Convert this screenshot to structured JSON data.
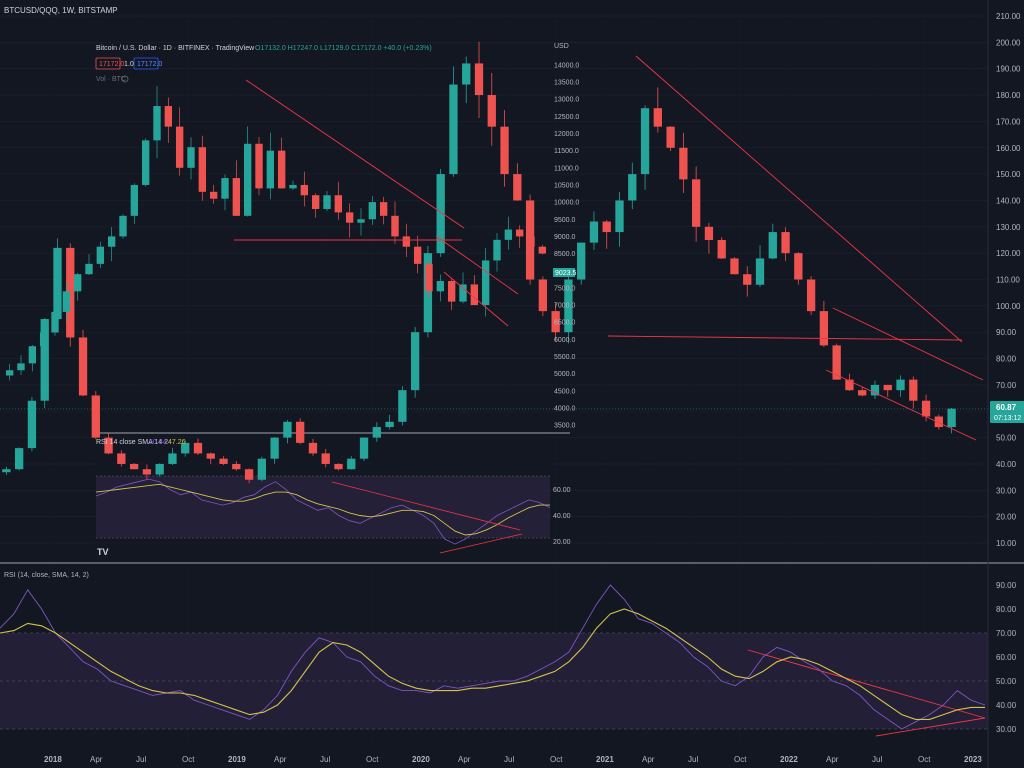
{
  "header": {
    "symbol": "BTCUSD/QQQ, 1W, BITSTAMP"
  },
  "inset": {
    "title": "Bitcoin / U.S. Dollar · 1D · BITFINEX · TradingView",
    "ohlc": "O17132.0 H17247.0 L17129.0 C17172.0 +40.0 (+0.23%)",
    "bid": "17172.0",
    "size": "1.0",
    "ask": "17172.0",
    "vol_label": "Vol · BTC",
    "rsi_label": "RSI 14 close SMA 14 2",
    "rsi_v1": "50.34",
    "rsi_v2": "47.26",
    "price_tag": "9023.5",
    "currency": "USD",
    "logo": "TV",
    "colors": {
      "up": "#26a69a",
      "down": "#ef5350"
    }
  },
  "price_badge": {
    "value": "60.87",
    "countdown": "07:13:12"
  },
  "rsi_header": "RSI (14, close, SMA, 14, 2)",
  "chart_data": [
    {
      "type": "candlestick",
      "title": "",
      "yaxis_ticks": [
        "210.00",
        "200.00",
        "190.00",
        "180.00",
        "170.00",
        "160.00",
        "150.00",
        "140.00",
        "130.00",
        "120.00",
        "110.00",
        "100.00",
        "90.00",
        "80.00",
        "70.00",
        "60.00",
        "50.00",
        "40.00",
        "30.00",
        "20.00",
        "10.00"
      ],
      "xaxis_ticks": [
        "2018",
        "Apr",
        "Jul",
        "Oct",
        "2019",
        "Apr",
        "Jul",
        "Oct",
        "2020",
        "Apr",
        "Jul",
        "Oct",
        "2021",
        "Apr",
        "Jul",
        "Oct",
        "2022",
        "Apr",
        "Jul",
        "Oct",
        "2023"
      ],
      "ylim": [
        5,
        215
      ],
      "series_close": [
        38,
        46,
        64,
        95,
        122,
        88,
        66,
        50,
        44,
        40,
        38,
        36,
        40,
        44,
        48,
        44,
        42,
        40,
        38,
        34,
        42,
        50,
        56,
        48,
        44,
        40,
        38,
        42,
        50,
        54,
        56,
        68,
        90,
        120,
        150,
        184,
        192,
        180,
        168,
        150,
        140,
        110,
        98,
        90,
        110,
        124,
        132,
        128,
        140,
        150,
        175,
        168,
        160,
        148,
        130,
        125,
        118,
        112,
        108,
        118,
        128,
        120,
        110,
        98,
        85,
        72,
        68,
        66,
        70,
        68,
        72,
        64,
        58,
        54,
        61
      ],
      "last_value": 60.87,
      "colors": {
        "up": "#26a69a",
        "down": "#ef5350",
        "annotation": "#f23645"
      },
      "annotations": [
        "descending trendline",
        "horizontal support 88",
        "descending channel"
      ]
    },
    {
      "type": "line",
      "title": "RSI (14, close, SMA, 14, 2)",
      "ylim": [
        25,
        95
      ],
      "yaxis_ticks": [
        "90.00",
        "80.00",
        "70.00",
        "60.00",
        "50.00",
        "40.00",
        "30.00"
      ],
      "bands": {
        "upper": 70,
        "middle": 50,
        "lower": 30
      },
      "series": [
        {
          "values": [
            72,
            78,
            88,
            80,
            70,
            64,
            58,
            55,
            50,
            48,
            46,
            44,
            45,
            46,
            42,
            40,
            38,
            36,
            34,
            38,
            44,
            54,
            62,
            68,
            66,
            60,
            58,
            52,
            48,
            46,
            46,
            45,
            48,
            47,
            48,
            49,
            50,
            50,
            52,
            55,
            58,
            62,
            72,
            82,
            90,
            84,
            76,
            74,
            70,
            66,
            60,
            56,
            50,
            48,
            52,
            60,
            64,
            62,
            58,
            55,
            50,
            48,
            44,
            38,
            34,
            30,
            33,
            36,
            40,
            46,
            42,
            40
          ]
        },
        {
          "values": [
            70,
            71,
            74,
            73,
            70,
            66,
            62,
            58,
            54,
            51,
            48,
            46,
            45,
            45,
            44,
            42,
            40,
            38,
            36,
            37,
            40,
            46,
            54,
            62,
            66,
            65,
            62,
            57,
            52,
            49,
            47,
            46,
            46,
            46,
            47,
            47,
            48,
            49,
            50,
            52,
            54,
            58,
            64,
            72,
            78,
            80,
            78,
            75,
            72,
            68,
            64,
            60,
            55,
            52,
            51,
            54,
            58,
            60,
            59,
            57,
            54,
            51,
            48,
            44,
            40,
            36,
            34,
            34,
            36,
            38,
            39,
            39
          ]
        }
      ],
      "colors": {
        "rsi": "#7e57c2",
        "sma": "#d4c44a",
        "band": "#2a2440"
      }
    },
    {
      "type": "candlestick",
      "title": "Bitcoin / U.S. Dollar · 1D · BITFINEX · TradingView",
      "yaxis_ticks": [
        "14000.0",
        "13500.0",
        "13000.0",
        "12500.0",
        "12000.0",
        "11500.0",
        "11000.0",
        "10500.0",
        "10000.0",
        "9500.0",
        "9000.0",
        "8500.0",
        "8000.0",
        "7500.0",
        "7000.0",
        "6500.0",
        "6000.0",
        "5500.0",
        "5000.0",
        "4500.0",
        "4000.0",
        "3500.0"
      ],
      "ylim": [
        3300,
        14200
      ],
      "series_close": [
        5100,
        5300,
        5800,
        6200,
        6800,
        7400,
        7900,
        8200,
        8700,
        9000,
        9600,
        10500,
        11800,
        12800,
        12200,
        11000,
        11600,
        10300,
        10100,
        10700,
        9600,
        11700,
        10400,
        11500,
        10400,
        10500,
        10200,
        9800,
        10200,
        9700,
        9400,
        9500,
        10000,
        9600,
        9000,
        8700,
        8200,
        7400,
        7700,
        7100,
        7600,
        7000,
        8300,
        8900,
        9200,
        9000,
        8700,
        8500
      ],
      "colors": {
        "up": "#26a69a",
        "down": "#ef5350"
      }
    },
    {
      "type": "line",
      "title": "RSI 14 close SMA 14 2",
      "yaxis_ticks": [
        "60.00",
        "40.00",
        "20.00"
      ],
      "ylim": [
        15,
        75
      ],
      "series": [
        {
          "values": [
            55,
            58,
            62,
            64,
            66,
            68,
            66,
            60,
            56,
            58,
            52,
            50,
            48,
            50,
            54,
            56,
            62,
            66,
            60,
            52,
            48,
            44,
            46,
            40,
            36,
            34,
            38,
            42,
            46,
            48,
            44,
            40,
            34,
            22,
            18,
            22,
            28,
            34,
            40,
            44,
            48,
            52,
            50,
            46
          ]
        },
        {
          "values": [
            58,
            59,
            60,
            61,
            62,
            63,
            64,
            62,
            60,
            58,
            56,
            54,
            52,
            51,
            51,
            53,
            56,
            58,
            58,
            56,
            52,
            49,
            47,
            45,
            42,
            40,
            39,
            40,
            42,
            44,
            44,
            43,
            40,
            34,
            28,
            25,
            26,
            29,
            33,
            38,
            42,
            46,
            48,
            48
          ]
        }
      ],
      "colors": {
        "rsi": "#7e57c2",
        "sma": "#d4c44a"
      }
    }
  ]
}
